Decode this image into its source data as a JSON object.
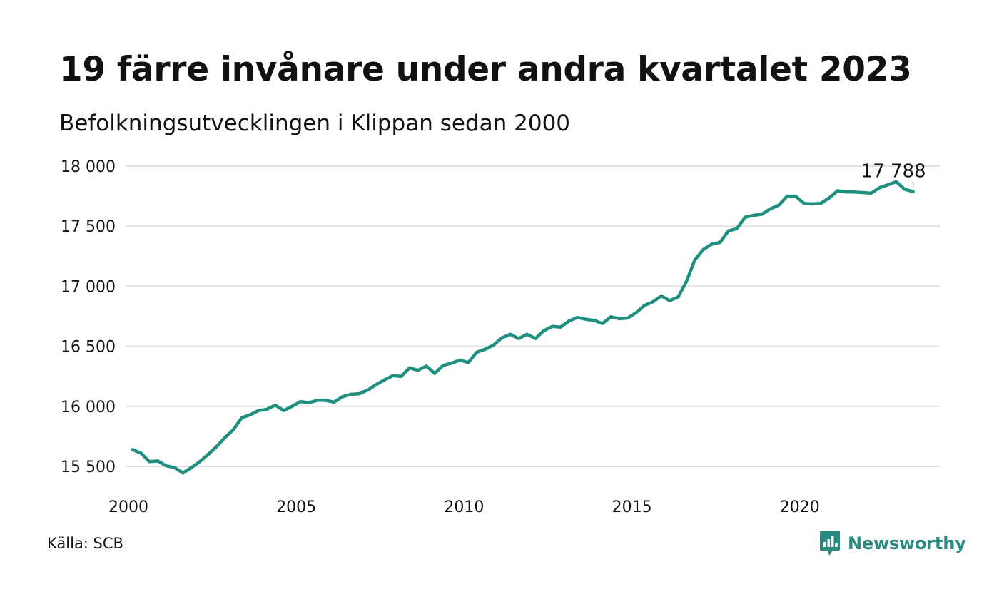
{
  "title": "19 färre invånare under andra kvartalet 2023",
  "subtitle": "Befolkningsutvecklingen i Klippan sedan 2000",
  "source": "Källa: SCB",
  "brand": {
    "name": "Newsworthy",
    "logo_icon": "bar-chart-speech-bubble-icon"
  },
  "colors": {
    "line": "#1f8f80",
    "grid": "#e0e0e4",
    "text": "#111111",
    "brand": "#2a8a80"
  },
  "chart_data": {
    "type": "line",
    "title": "19 färre invånare under andra kvartalet 2023",
    "subtitle": "Befolkningsutvecklingen i Klippan sedan 2000",
    "xlabel": "",
    "ylabel": "",
    "grid": true,
    "x_ticks": [
      "2000",
      "2005",
      "2010",
      "2015",
      "2020"
    ],
    "y_ticks": [
      "15 500",
      "16 000",
      "16 500",
      "17 000",
      "17 500",
      "18 000"
    ],
    "ylim": [
      15500,
      18000
    ],
    "last_label": "17 788",
    "series": [
      {
        "x": [
          2000.125,
          2000.375,
          2000.625,
          2000.875,
          2001.125,
          2001.375,
          2001.625,
          2001.875,
          2002.125,
          2002.375,
          2002.625,
          2002.875,
          2003.125,
          2003.375,
          2003.625,
          2003.875,
          2004.125,
          2004.375,
          2004.625,
          2004.875,
          2005.125,
          2005.375,
          2005.625,
          2005.875,
          2006.125,
          2006.375,
          2006.625,
          2006.875,
          2007.125,
          2007.375,
          2007.625,
          2007.875,
          2008.125,
          2008.375,
          2008.625,
          2008.875,
          2009.125,
          2009.375,
          2009.625,
          2009.875,
          2010.125,
          2010.375,
          2010.625,
          2010.875,
          2011.125,
          2011.375,
          2011.625,
          2011.875,
          2012.125,
          2012.375,
          2012.625,
          2012.875,
          2013.125,
          2013.375,
          2013.625,
          2013.875,
          2014.125,
          2014.375,
          2014.625,
          2014.875,
          2015.125,
          2015.375,
          2015.625,
          2015.875,
          2016.125,
          2016.375,
          2016.625,
          2016.875,
          2017.125,
          2017.375,
          2017.625,
          2017.875,
          2018.125,
          2018.375,
          2018.625,
          2018.875,
          2019.125,
          2019.375,
          2019.625,
          2019.875,
          2020.125,
          2020.375,
          2020.625,
          2020.875,
          2021.125,
          2021.375,
          2021.625,
          2021.875,
          2022.125,
          2022.375,
          2022.625,
          2022.875,
          2023.125,
          2023.375
        ],
        "values": [
          15640,
          15610,
          15540,
          15545,
          15505,
          15490,
          15445,
          15490,
          15540,
          15600,
          15665,
          15740,
          15805,
          15905,
          15930,
          15965,
          15975,
          16010,
          15965,
          16000,
          16040,
          16030,
          16050,
          16050,
          16035,
          16080,
          16100,
          16105,
          16135,
          16180,
          16220,
          16255,
          16250,
          16320,
          16300,
          16335,
          16275,
          16340,
          16360,
          16385,
          16365,
          16450,
          16475,
          16510,
          16570,
          16600,
          16565,
          16600,
          16565,
          16630,
          16665,
          16660,
          16710,
          16740,
          16725,
          16715,
          16690,
          16745,
          16730,
          16735,
          16780,
          16840,
          16870,
          16920,
          16880,
          16910,
          17040,
          17220,
          17305,
          17350,
          17365,
          17460,
          17480,
          17575,
          17590,
          17600,
          17645,
          17675,
          17750,
          17750,
          17690,
          17685,
          17690,
          17735,
          17795,
          17785,
          17785,
          17780,
          17775,
          17820,
          17845,
          17870,
          17807,
          17788
        ]
      }
    ]
  }
}
